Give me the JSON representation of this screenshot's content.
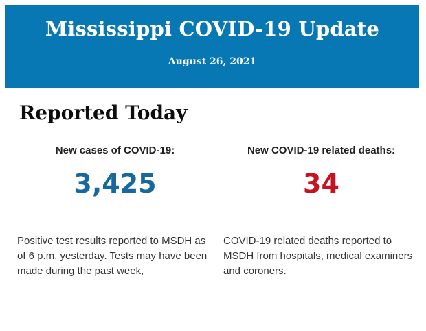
{
  "header": {
    "title": "Mississippi COVID-19 Update",
    "date": "August 26, 2021",
    "background_color": "#0878b4",
    "text_color": "#ffffff"
  },
  "main": {
    "heading": "Reported Today",
    "stats": [
      {
        "label": "New cases of COVID-19:",
        "value": "3,425",
        "value_color": "#17689c",
        "description": "Positive test results reported to MSDH as of 6 p.m. yesterday. Tests may have been made during the past week,"
      },
      {
        "label": "New COVID-19 related deaths:",
        "value": "34",
        "value_color": "#c51322",
        "description": "COVID-19 related deaths reported to MSDH from hospitals, medical examiners and coroners."
      }
    ]
  }
}
